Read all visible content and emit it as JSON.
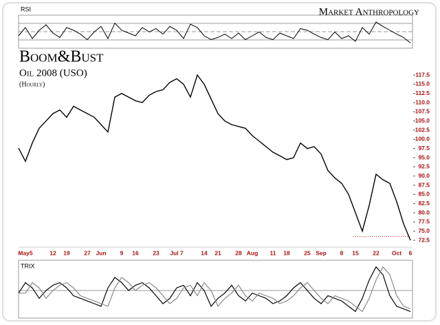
{
  "brand": "Market Anthropology",
  "chart_data": [
    {
      "type": "line",
      "title": "RSI",
      "color": "#000000",
      "ylim": [
        25,
        80
      ],
      "values": [
        45,
        60,
        40,
        55,
        65,
        50,
        42,
        60,
        55,
        48,
        38,
        52,
        62,
        40,
        68,
        55,
        50,
        45,
        60,
        52,
        58,
        48,
        62,
        55,
        40,
        66,
        60,
        45,
        38,
        42,
        48,
        40,
        50,
        38,
        45,
        52,
        42,
        38,
        50,
        45,
        40,
        58,
        55,
        48,
        42,
        38,
        52,
        40,
        45,
        35,
        60,
        48,
        70,
        62,
        55,
        48,
        42,
        32
      ]
    },
    {
      "type": "line",
      "title": "Boom&Bust",
      "subtitle": "Oil 2008 (USO)",
      "note": "(Hourly)",
      "color": "#000000",
      "reference_line": {
        "value": 73.5,
        "color": "#cc0000"
      },
      "categories": [
        null,
        "May5",
        null,
        null,
        null,
        "12",
        null,
        "19",
        null,
        null,
        "27",
        null,
        "Jun",
        null,
        null,
        "9",
        null,
        "16",
        null,
        null,
        "23",
        null,
        null,
        "Jul 7",
        null,
        null,
        null,
        "14",
        null,
        "21",
        null,
        null,
        "28",
        null,
        "Aug",
        null,
        null,
        "11",
        null,
        "18",
        null,
        null,
        "25",
        null,
        "Sep",
        null,
        null,
        "8",
        null,
        "15",
        null,
        null,
        "22",
        null,
        null,
        "Oct",
        null,
        "6"
      ],
      "values": [
        97.6,
        94,
        99,
        103,
        105,
        107,
        108,
        106,
        109,
        108,
        107,
        106,
        104,
        102,
        111.5,
        112.5,
        111.5,
        110.5,
        110,
        112,
        113,
        113.5,
        115.5,
        116.5,
        115,
        111.5,
        117.5,
        115,
        111,
        107,
        105,
        104,
        103.5,
        103,
        101,
        99.5,
        98,
        96.5,
        95.5,
        94.5,
        95,
        99,
        97.5,
        98,
        96,
        91.5,
        89.5,
        88,
        85,
        80,
        75,
        82,
        90.5,
        89,
        88,
        83,
        77,
        72.5
      ],
      "ylim": [
        71,
        119
      ],
      "yticks": [
        72.5,
        {
          "value": 75,
          "label": "75.0"
        },
        77.5,
        {
          "value": 80,
          "label": "80.0"
        },
        82.5,
        {
          "value": 85,
          "label": "85.0"
        },
        87.5,
        {
          "value": 90,
          "label": "90.0"
        },
        92.5,
        {
          "value": 95,
          "label": "95.0"
        },
        97.5,
        {
          "value": 100,
          "label": "100.0"
        },
        102.5,
        {
          "value": 105,
          "label": "105.0"
        },
        107.5,
        {
          "value": 110,
          "label": "110.0"
        },
        112.5,
        {
          "value": 115,
          "label": "115.0"
        },
        117.5
      ],
      "tick_color": "#aa1111"
    },
    {
      "type": "line",
      "title": "TRIX",
      "ylim": [
        -1,
        1.1
      ],
      "series": [
        {
          "color": "#000000",
          "values": [
            -0.1,
            0.3,
            0.1,
            -0.3,
            0,
            0.2,
            0.3,
            0.1,
            -0.2,
            -0.3,
            -0.4,
            -0.5,
            -0.6,
            0.1,
            0.5,
            0.3,
            0,
            0.2,
            0.3,
            0.1,
            -0.2,
            -0.5,
            -0.3,
            0.1,
            0.2,
            -0.2,
            0.3,
            0,
            -0.6,
            -0.3,
            -0.1,
            0.2,
            -0.2,
            -0.4,
            -0.1,
            -0.2,
            -0.3,
            -0.5,
            -0.4,
            -0.2,
            0.1,
            0.3,
            0,
            -0.3,
            -0.5,
            -0.2,
            -0.3,
            -0.4,
            -0.6,
            -0.8,
            -0.3,
            0.4,
            0.9,
            0.6,
            -0.2,
            -0.6,
            -0.7,
            -0.8
          ]
        },
        {
          "color": "#888888",
          "values": [
            -0.1,
            -0.1,
            0.3,
            0.1,
            -0.3,
            0,
            0.2,
            0.3,
            0.1,
            -0.2,
            -0.3,
            -0.4,
            -0.5,
            -0.6,
            0.1,
            0.5,
            0.3,
            0,
            0.2,
            0.3,
            0.1,
            -0.2,
            -0.5,
            -0.3,
            0.1,
            0.2,
            -0.2,
            0.3,
            0,
            -0.6,
            -0.3,
            -0.1,
            0.2,
            -0.2,
            -0.4,
            -0.1,
            -0.2,
            -0.3,
            -0.5,
            -0.4,
            -0.2,
            0.1,
            0.3,
            0,
            -0.3,
            -0.5,
            -0.2,
            -0.3,
            -0.4,
            -0.6,
            -0.8,
            -0.3,
            0.4,
            0.9,
            0.6,
            -0.2,
            -0.6,
            -0.7
          ]
        }
      ]
    }
  ]
}
